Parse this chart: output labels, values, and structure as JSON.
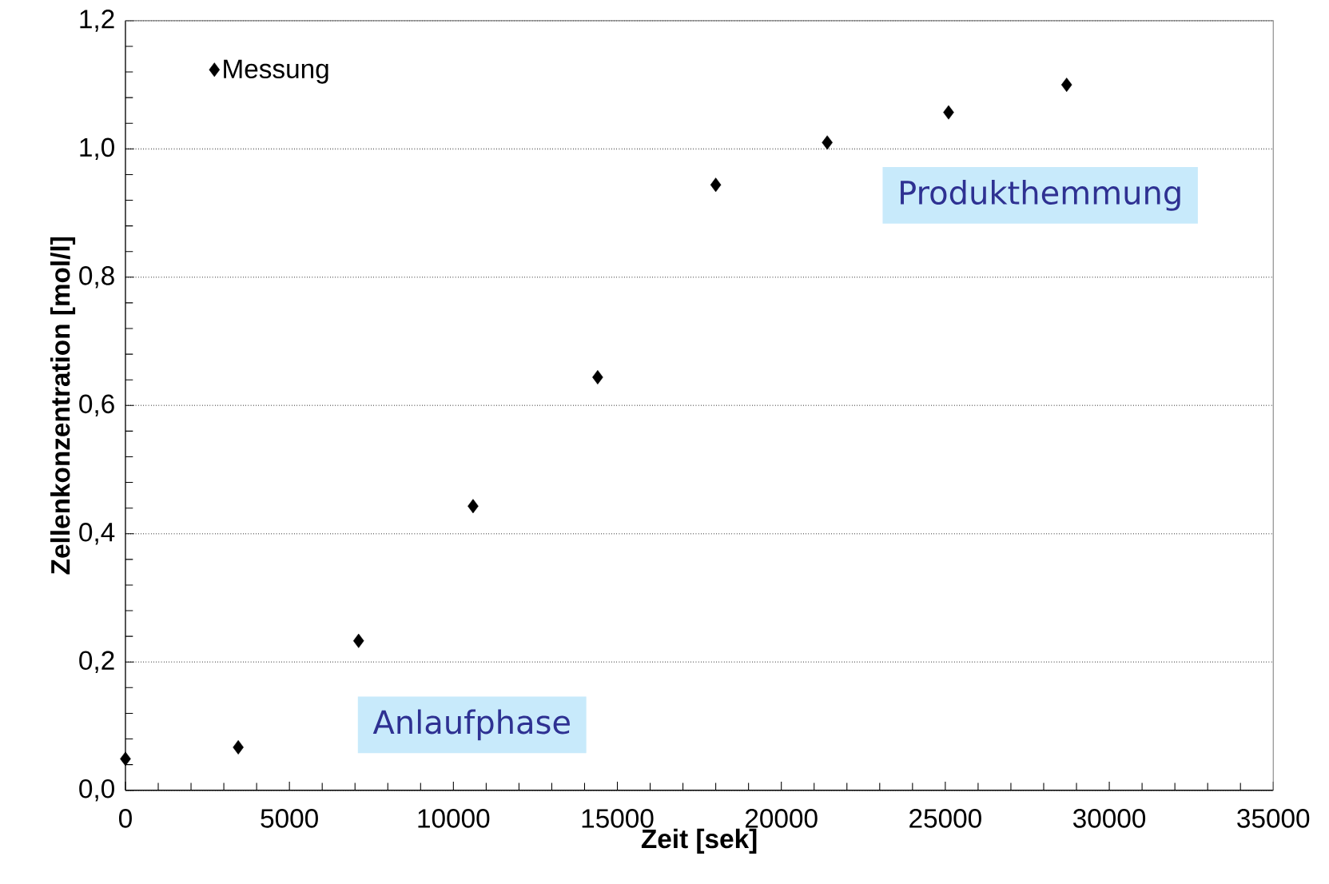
{
  "chart_data": {
    "type": "scatter",
    "x": [
      0,
      3440,
      7110,
      10600,
      14400,
      18000,
      21400,
      25100,
      28700
    ],
    "series": [
      {
        "name": "Messung",
        "color": "#000000",
        "values": [
          0.049,
          0.067,
          0.233,
          0.443,
          0.644,
          0.944,
          1.01,
          1.057,
          1.1
        ]
      }
    ],
    "xlabel": "Zeit [sek]",
    "ylabel": "Zellenkonzentration [mol/l]",
    "xlim": [
      0,
      35000
    ],
    "xticks": [
      0,
      5000,
      10000,
      15000,
      20000,
      25000,
      30000,
      35000
    ],
    "ylim": [
      0,
      1.2
    ],
    "yticks": [
      {
        "value": 0,
        "label": "0,0"
      },
      {
        "value": 0.2,
        "label": "0,2"
      },
      {
        "value": 0.4,
        "label": "0,4"
      },
      {
        "value": 0.6,
        "label": "0,6"
      },
      {
        "value": 0.8,
        "label": "0,8"
      },
      {
        "value": 1.0,
        "label": "1,0"
      },
      {
        "value": 1.2,
        "label": "1,2"
      }
    ],
    "grid": "y",
    "legend": "top left",
    "marker": "diamond",
    "annotations": [
      "Produkthemmung",
      "Anlaufphase"
    ]
  }
}
